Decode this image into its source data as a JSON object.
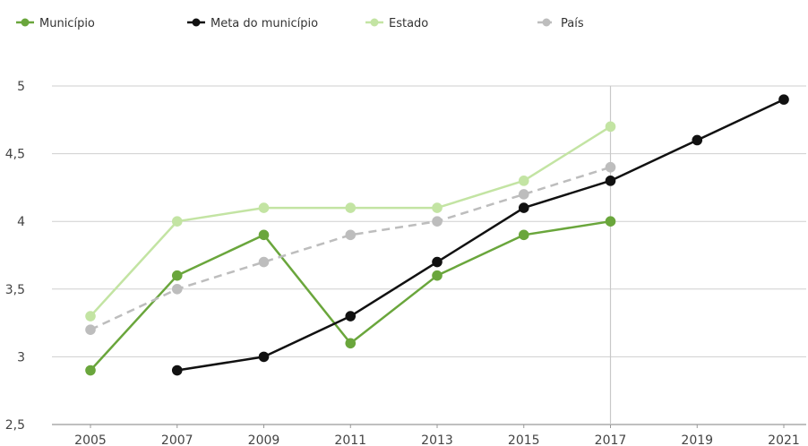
{
  "chart_data": {
    "type": "line",
    "x": [
      "2005",
      "2007",
      "2009",
      "2011",
      "2013",
      "2015",
      "2017",
      "2019",
      "2021"
    ],
    "ylim": [
      2.5,
      5
    ],
    "yticks": [
      "2,5",
      "3",
      "3,5",
      "4",
      "4,5",
      "5"
    ],
    "ytick_values": [
      2.5,
      3,
      3.5,
      4,
      4.5,
      5
    ],
    "highlight_x": "2017",
    "grid": "horizontal",
    "legend_position": "top",
    "series": [
      {
        "name": "Município",
        "color": "#6aa63c",
        "dashed": false,
        "values": [
          2.9,
          3.6,
          3.9,
          3.1,
          3.6,
          3.9,
          4.0,
          null,
          null
        ]
      },
      {
        "name": "Meta do município",
        "color": "#111111",
        "dashed": false,
        "values": [
          null,
          2.9,
          3.0,
          3.3,
          3.7,
          4.1,
          4.3,
          4.6,
          4.9
        ]
      },
      {
        "name": "Estado",
        "color": "#c3e4a3",
        "dashed": false,
        "values": [
          3.3,
          4.0,
          4.1,
          4.1,
          4.1,
          4.3,
          4.7,
          null,
          null
        ]
      },
      {
        "name": "País",
        "color": "#bdbdbd",
        "dashed": true,
        "values": [
          3.2,
          3.5,
          3.7,
          3.9,
          4.0,
          4.2,
          4.4,
          null,
          null
        ]
      }
    ]
  }
}
